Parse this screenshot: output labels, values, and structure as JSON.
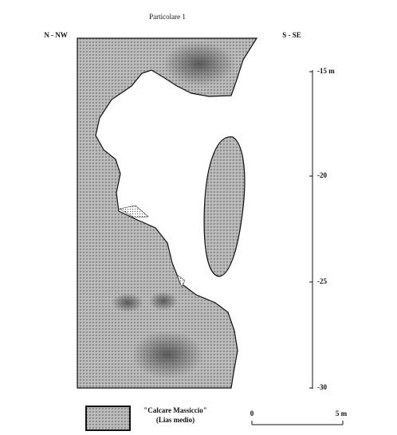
{
  "header": {
    "title": "Particolare 1",
    "left_direction": "N - NW",
    "right_direction": "S - SE"
  },
  "depth_scale": {
    "labels": [
      "-15 m",
      "-20",
      "-25",
      "-30"
    ]
  },
  "legend": {
    "name": "\"Calcare Massiccio\"",
    "age": "(Lias medio)"
  },
  "scale_bar": {
    "start": "0",
    "end": "5 m"
  }
}
